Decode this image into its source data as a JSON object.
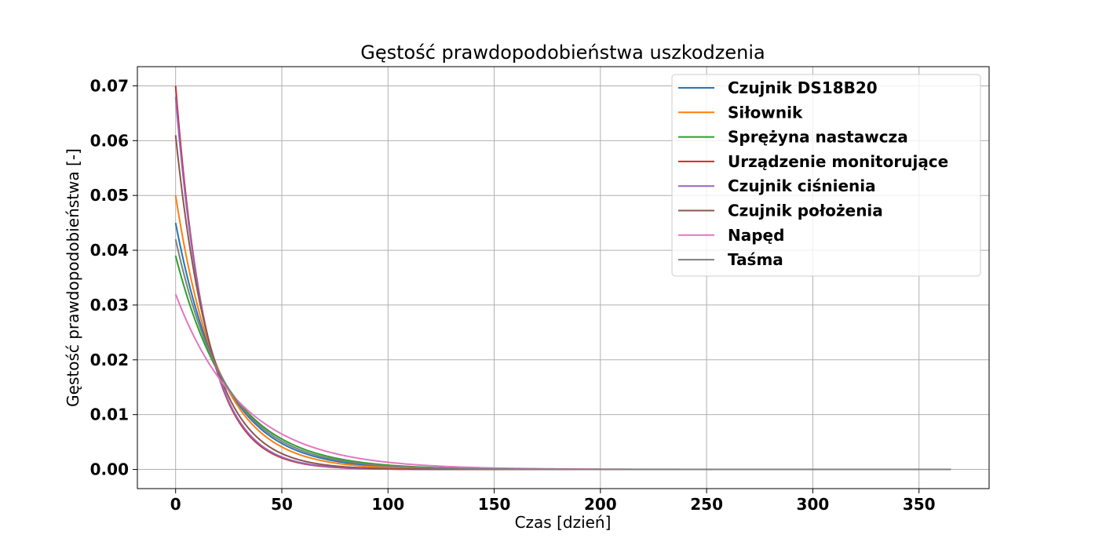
{
  "chart_data": {
    "type": "line",
    "title": "Gęstość prawdopodobieństwa uszkodzenia",
    "xlabel": "Czas [dzień]",
    "ylabel": "Gęstość prawdopodobieństwa [-]",
    "xlim": [
      -18,
      383
    ],
    "ylim": [
      -0.0035,
      0.0735
    ],
    "xticks": [
      0,
      50,
      100,
      150,
      200,
      250,
      300,
      350
    ],
    "xtick_labels": [
      "0",
      "50",
      "100",
      "150",
      "200",
      "250",
      "300",
      "350"
    ],
    "yticks": [
      0.0,
      0.01,
      0.02,
      0.03,
      0.04,
      0.05,
      0.06,
      0.07
    ],
    "ytick_labels": [
      "0.00",
      "0.01",
      "0.02",
      "0.03",
      "0.04",
      "0.05",
      "0.06",
      "0.07"
    ],
    "grid": true,
    "legend_position": "top-right",
    "x_range": [
      0,
      365
    ],
    "function": "exponential density f(t) = λ·exp(-λ·t)",
    "series": [
      {
        "name": "Czujnik DS18B20",
        "lambda": 0.045,
        "color": "#1f77b4"
      },
      {
        "name": "Siłownik",
        "lambda": 0.05,
        "color": "#ff7f0e"
      },
      {
        "name": "Sprężyna nastawcza",
        "lambda": 0.039,
        "color": "#2ca02c"
      },
      {
        "name": "Urządzenie monitorujące",
        "lambda": 0.07,
        "color": "#d62728"
      },
      {
        "name": "Czujnik ciśnienia",
        "lambda": 0.068,
        "color": "#9467bd"
      },
      {
        "name": "Czujnik położenia",
        "lambda": 0.061,
        "color": "#8c564b"
      },
      {
        "name": "Napęd",
        "lambda": 0.032,
        "color": "#e377c2"
      },
      {
        "name": "Taśma",
        "lambda": 0.042,
        "color": "#7f7f7f"
      }
    ]
  }
}
